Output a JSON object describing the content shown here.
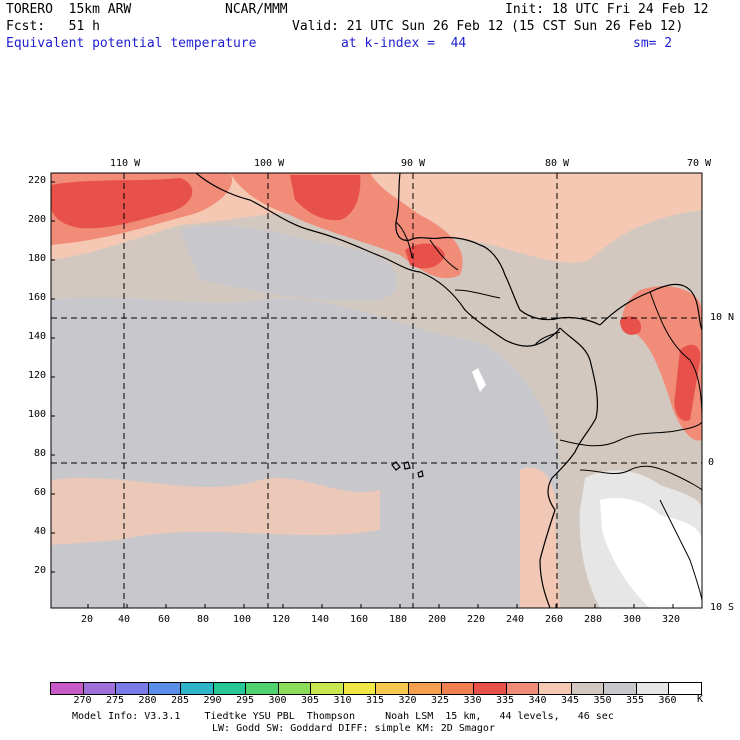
{
  "header": {
    "model": "TORERO  15km ARW",
    "org": "NCAR/MMM",
    "init": "Init: 18 UTC Fri 24 Feb 12",
    "fcst": "Fcst:   51 h",
    "valid": "Valid: 21 UTC Sun 26 Feb 12 (15 CST Sun 26 Feb 12)",
    "field": "Equivalent potential temperature",
    "level": "at k-index =  44",
    "smooth": "sm= 2"
  },
  "map": {
    "top_lon_labels": [
      "110 W",
      "100 W",
      "90 W",
      "80 W",
      "70 W"
    ],
    "right_lat_labels": [
      "10 N",
      "0",
      "10 S"
    ],
    "left_y_ticks": [
      "220",
      "200",
      "180",
      "160",
      "140",
      "120",
      "100",
      "80",
      "60",
      "40",
      "20"
    ],
    "bottom_x_ticks": [
      "20",
      "40",
      "60",
      "80",
      "100",
      "120",
      "140",
      "160",
      "180",
      "200",
      "220",
      "240",
      "260",
      "280",
      "300",
      "320"
    ]
  },
  "legend": {
    "labels": [
      "270",
      "275",
      "280",
      "285",
      "290",
      "295",
      "300",
      "305",
      "310",
      "315",
      "320",
      "325",
      "330",
      "335",
      "340",
      "345",
      "350",
      "355",
      "360"
    ],
    "unit": "K",
    "colors": [
      "#c85ac8",
      "#a070d8",
      "#7a7ae6",
      "#5a8ee8",
      "#30b4c8",
      "#28c896",
      "#50d26e",
      "#8cdc5a",
      "#c8e650",
      "#f0e646",
      "#f5c850",
      "#f5a050",
      "#f08050",
      "#e8504a",
      "#f08c78",
      "#f5c8b4",
      "#d2c8c0",
      "#c8c8cc",
      "#e6e6e6",
      "#ffffff"
    ]
  },
  "footer": {
    "line1": "Model Info: V3.3.1    Tiedtke YSU PBL  Thompson     Noah LSM  15 km,   44 levels,   46 sec",
    "line2": "LW: Godd SW: Goddard DIFF: simple KM: 2D Smagor"
  }
}
